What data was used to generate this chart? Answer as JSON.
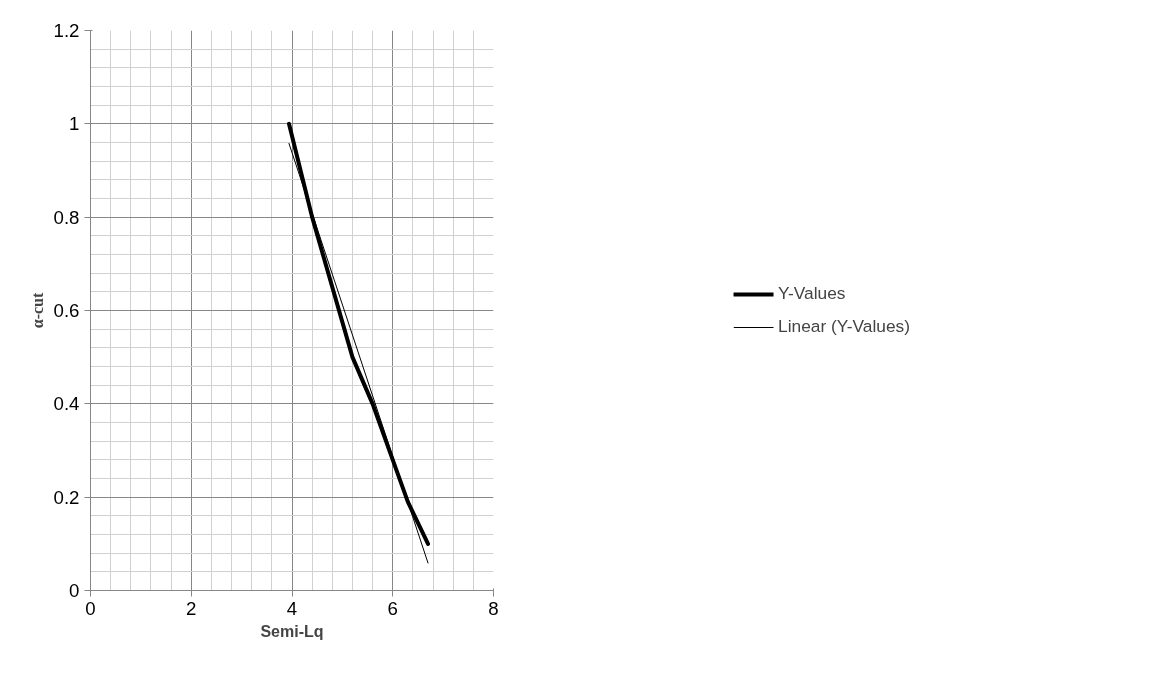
{
  "chart_data": {
    "type": "line",
    "xlabel": "Semi-Lq",
    "ylabel": "α-cut",
    "xlim": [
      0,
      8
    ],
    "xticks": [
      0,
      2,
      4,
      6,
      8
    ],
    "ylim": [
      0,
      1.2
    ],
    "yticks": [
      0,
      0.2,
      0.4,
      0.6,
      0.8,
      1,
      1.2
    ],
    "grid": true,
    "legend": "right",
    "marker": "none",
    "series": [
      {
        "name": "Y-Values",
        "color": "#000000",
        "x": [
          3.94,
          4.4,
          5.2,
          5.6,
          6,
          6.3,
          6.7
        ],
        "values": [
          1,
          0.8,
          0.5,
          0.4,
          0.28,
          0.19,
          0.1
        ]
      },
      {
        "name": "Linear (Y-Values)",
        "type": "line",
        "color": "#000000",
        "x": [
          3.94,
          6.7
        ],
        "values": [
          0.958,
          0.059
        ]
      }
    ]
  }
}
